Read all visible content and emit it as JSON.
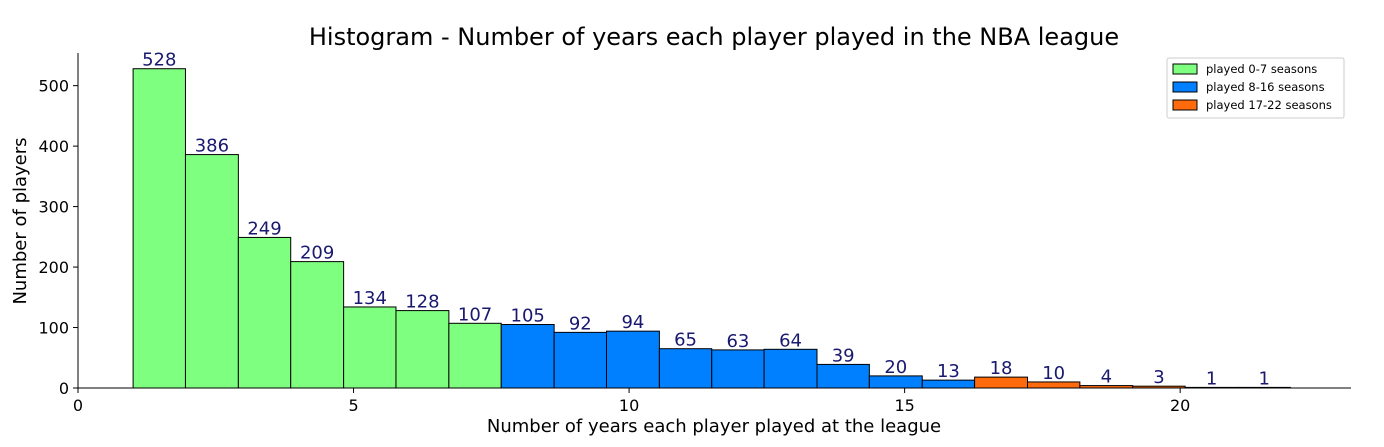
{
  "chart_data": {
    "type": "bar",
    "title": "Histogram - Number of years each player played in the NBA league",
    "xlabel": "Number of years each player played at the league",
    "ylabel": "Number of players",
    "xlim": [
      0,
      23.1
    ],
    "ylim": [
      0,
      554
    ],
    "xticks": [
      0,
      5,
      10,
      15,
      20
    ],
    "yticks": [
      0,
      100,
      200,
      300,
      400,
      500
    ],
    "bin_edges": [
      1.0,
      1.95,
      2.91,
      3.86,
      4.82,
      5.77,
      6.73,
      7.68,
      8.64,
      9.59,
      10.55,
      11.5,
      12.45,
      13.41,
      14.36,
      15.32,
      16.27,
      17.23,
      18.18,
      19.14,
      20.09,
      21.05,
      22.0
    ],
    "values": [
      528,
      386,
      249,
      209,
      134,
      128,
      107,
      105,
      92,
      94,
      65,
      63,
      64,
      39,
      20,
      13,
      18,
      10,
      4,
      3,
      1,
      1
    ],
    "bar_series": [
      0,
      0,
      0,
      0,
      0,
      0,
      0,
      1,
      1,
      1,
      1,
      1,
      1,
      1,
      1,
      1,
      2,
      2,
      2,
      2,
      2,
      2
    ],
    "series": [
      {
        "name": "played 0-7 seasons",
        "color": "#7fff7f"
      },
      {
        "name": "played 8-16 seasons",
        "color": "#0080ff"
      },
      {
        "name": "played 17-22 seasons",
        "color": "#ff6a0d"
      }
    ],
    "bar_edge_color": "#000000",
    "label_color": "#191970",
    "legend_position": "top-right",
    "grid": false
  }
}
